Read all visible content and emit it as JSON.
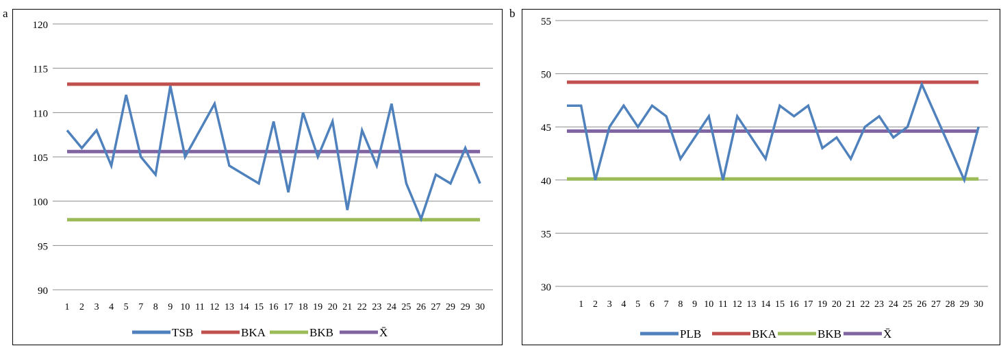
{
  "panels": [
    {
      "letter": "a"
    },
    {
      "letter": "b"
    }
  ],
  "chart_data": [
    {
      "type": "line",
      "ylim": [
        90,
        120
      ],
      "yticks": [
        90,
        95,
        100,
        105,
        110,
        115,
        120
      ],
      "categories": [
        "1",
        "2",
        "3",
        "4",
        "5",
        "7",
        "8",
        "9",
        "10",
        "11",
        "12",
        "13",
        "14",
        "15",
        "16",
        "17",
        "18",
        "19",
        "20",
        "21",
        "22",
        "23",
        "24",
        "25",
        "26",
        "27",
        "29",
        "29",
        "30"
      ],
      "grid": true,
      "legend_position": "bottom",
      "series": [
        {
          "name": "TSB",
          "color": "#4f81bd",
          "values": [
            108,
            106,
            108,
            104,
            112,
            105,
            103,
            113,
            105,
            108,
            111,
            104,
            103,
            102,
            109,
            101,
            110,
            105,
            109,
            99,
            108,
            104,
            111,
            102,
            98,
            103,
            102,
            106,
            102
          ]
        },
        {
          "name": "BKA",
          "color": "#c0504d",
          "values": [
            113.2,
            113.2,
            113.2,
            113.2,
            113.2,
            113.2,
            113.2,
            113.2,
            113.2,
            113.2,
            113.2,
            113.2,
            113.2,
            113.2,
            113.2,
            113.2,
            113.2,
            113.2,
            113.2,
            113.2,
            113.2,
            113.2,
            113.2,
            113.2,
            113.2,
            113.2,
            113.2,
            113.2,
            113.2
          ]
        },
        {
          "name": "BKB",
          "color": "#9bbb59",
          "values": [
            97.9,
            97.9,
            97.9,
            97.9,
            97.9,
            97.9,
            97.9,
            97.9,
            97.9,
            97.9,
            97.9,
            97.9,
            97.9,
            97.9,
            97.9,
            97.9,
            97.9,
            97.9,
            97.9,
            97.9,
            97.9,
            97.9,
            97.9,
            97.9,
            97.9,
            97.9,
            97.9,
            97.9,
            97.9
          ]
        },
        {
          "name": "X̄",
          "color": "#8064a2",
          "values": [
            105.6,
            105.6,
            105.6,
            105.6,
            105.6,
            105.6,
            105.6,
            105.6,
            105.6,
            105.6,
            105.6,
            105.6,
            105.6,
            105.6,
            105.6,
            105.6,
            105.6,
            105.6,
            105.6,
            105.6,
            105.6,
            105.6,
            105.6,
            105.6,
            105.6,
            105.6,
            105.6,
            105.6,
            105.6
          ]
        }
      ]
    },
    {
      "type": "line",
      "ylim": [
        30,
        55
      ],
      "yticks": [
        30,
        35,
        40,
        45,
        50,
        55
      ],
      "categories": [
        "",
        "1",
        "2",
        "3",
        "4",
        "5",
        "6",
        "7",
        "8",
        "9",
        "10",
        "11",
        "12",
        "13",
        "14",
        "15",
        "16",
        "17",
        "19",
        "20",
        "21",
        "22",
        "23",
        "24",
        "25",
        "26",
        "27",
        "28",
        "29",
        "30"
      ],
      "grid": true,
      "legend_position": "bottom",
      "series": [
        {
          "name": "PLB",
          "color": "#4f81bd",
          "values": [
            47,
            47,
            40,
            45,
            47,
            45,
            47,
            46,
            42,
            44,
            46,
            40,
            46,
            44,
            42,
            47,
            46,
            47,
            43,
            44,
            42,
            45,
            46,
            44,
            45,
            49,
            46,
            43,
            40,
            45
          ]
        },
        {
          "name": "BKA",
          "color": "#c0504d",
          "values": [
            49.2,
            49.2,
            49.2,
            49.2,
            49.2,
            49.2,
            49.2,
            49.2,
            49.2,
            49.2,
            49.2,
            49.2,
            49.2,
            49.2,
            49.2,
            49.2,
            49.2,
            49.2,
            49.2,
            49.2,
            49.2,
            49.2,
            49.2,
            49.2,
            49.2,
            49.2,
            49.2,
            49.2,
            49.2,
            49.2
          ]
        },
        {
          "name": "BKB",
          "color": "#9bbb59",
          "values": [
            40.1,
            40.1,
            40.1,
            40.1,
            40.1,
            40.1,
            40.1,
            40.1,
            40.1,
            40.1,
            40.1,
            40.1,
            40.1,
            40.1,
            40.1,
            40.1,
            40.1,
            40.1,
            40.1,
            40.1,
            40.1,
            40.1,
            40.1,
            40.1,
            40.1,
            40.1,
            40.1,
            40.1,
            40.1,
            40.1
          ]
        },
        {
          "name": "X̄",
          "color": "#8064a2",
          "values": [
            44.6,
            44.6,
            44.6,
            44.6,
            44.6,
            44.6,
            44.6,
            44.6,
            44.6,
            44.6,
            44.6,
            44.6,
            44.6,
            44.6,
            44.6,
            44.6,
            44.6,
            44.6,
            44.6,
            44.6,
            44.6,
            44.6,
            44.6,
            44.6,
            44.6,
            44.6,
            44.6,
            44.6,
            44.6,
            44.6
          ]
        }
      ]
    }
  ]
}
